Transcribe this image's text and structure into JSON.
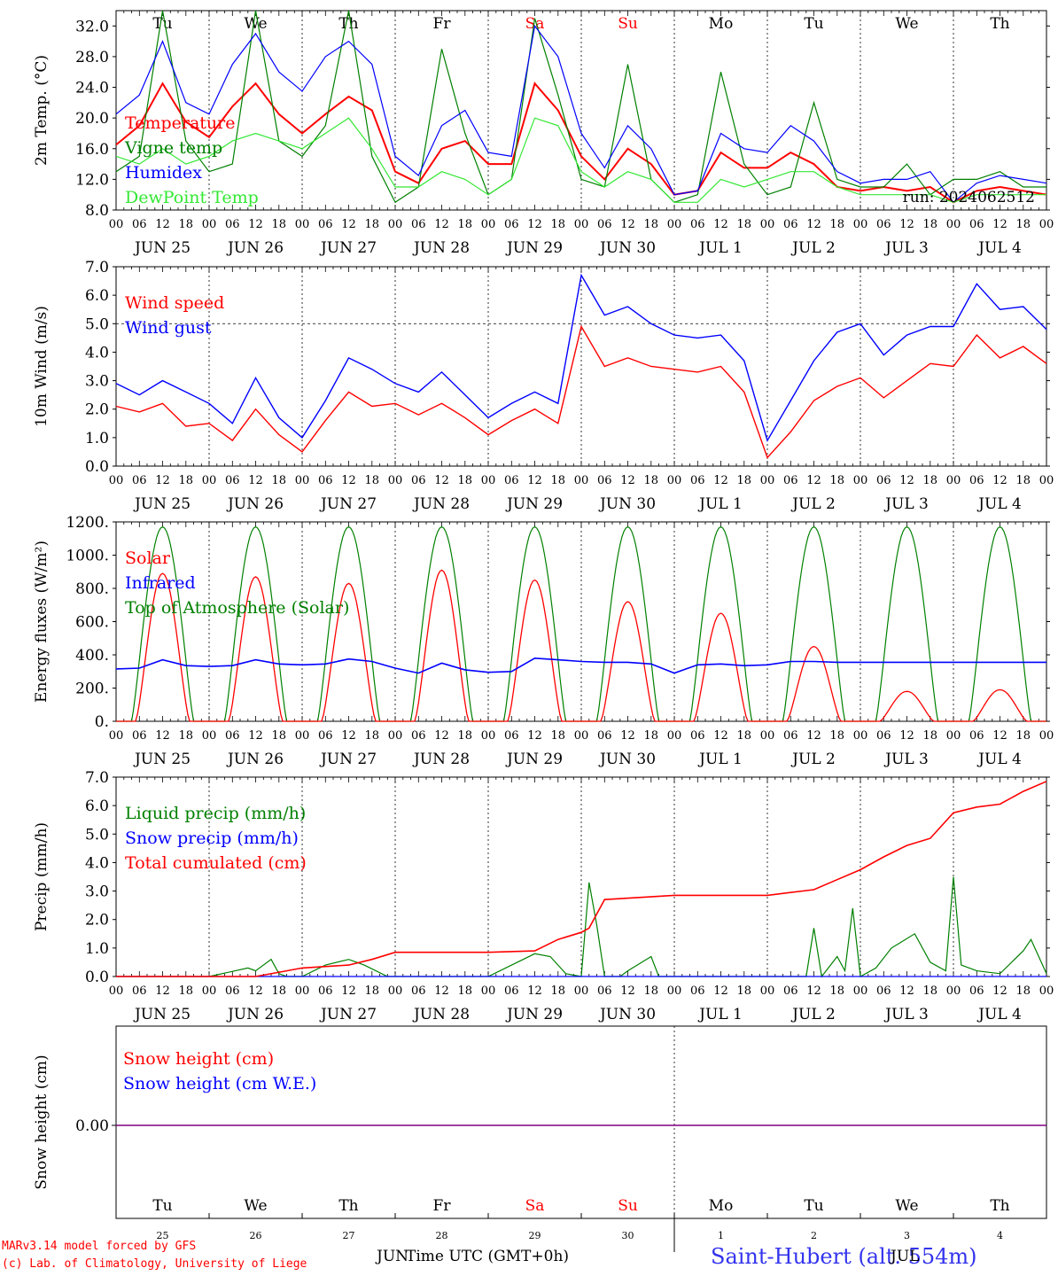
{
  "footer": {
    "model": "MARv3.14 model forced by GFS",
    "copyright": "(c) Lab. of Climatology, University of Liege",
    "station": "Saint-Hubert (alt. 554m)",
    "time_axis": "Time UTC (GMT+0h)",
    "month_jun": "JUN",
    "month_jul": "JUL"
  },
  "colors": {
    "red": "#ff0000",
    "green": "#008000",
    "blue": "#0000ff",
    "lightgreen": "#33e833",
    "purple": "#800080",
    "sat_sun": "#ff0000"
  },
  "days": [
    "Tu",
    "We",
    "Th",
    "Fr",
    "Sa",
    "Su",
    "Mo",
    "Tu",
    "We",
    "Th"
  ],
  "weekend_indices": [
    4,
    5
  ],
  "date_labels": [
    "JUN 25",
    "JUN 26",
    "JUN 27",
    "JUN 28",
    "JUN 29",
    "JUN 30",
    "JUL  1",
    "JUL  2",
    "JUL  3",
    "JUL  4"
  ],
  "day_numbers": [
    "25",
    "26",
    "27",
    "28",
    "29",
    "30",
    "1",
    "2",
    "3",
    "4"
  ],
  "hour_ticks": [
    "00",
    "06",
    "12",
    "18"
  ],
  "chart_data": [
    {
      "type": "line",
      "id": "temperature",
      "ylabel": "2m Temp. (°C)",
      "ylim": [
        8.0,
        34.0
      ],
      "yticks": [
        "8.0",
        "12.0",
        "16.0",
        "20.0",
        "24.0",
        "28.0",
        "32.0"
      ],
      "run_label": "run: 2024062512",
      "x_unit": "hours since JUN 25 00 UTC",
      "series": [
        {
          "name": "Temperature",
          "color": "red",
          "x": [
            0,
            6,
            12,
            18,
            24,
            30,
            36,
            42,
            48,
            54,
            60,
            66,
            72,
            78,
            84,
            90,
            96,
            102,
            108,
            114,
            120,
            126,
            132,
            138,
            144,
            150,
            156,
            162,
            168,
            174,
            180,
            186,
            192,
            198,
            204,
            210,
            216,
            222,
            228,
            234,
            240
          ],
          "values": [
            16.5,
            19,
            24.5,
            19.5,
            17.5,
            21.5,
            24.5,
            20.5,
            18,
            20.5,
            22.8,
            21,
            13,
            11.5,
            16,
            17,
            14,
            14,
            24.5,
            21,
            15,
            12,
            16,
            14,
            10,
            10.5,
            15.5,
            13.5,
            13.5,
            15.5,
            14,
            11,
            10.5,
            11,
            10.5,
            11,
            9,
            10.5,
            11,
            10.5,
            10
          ]
        },
        {
          "name": "Vigne temp",
          "color": "green",
          "x": [
            0,
            6,
            12,
            18,
            24,
            30,
            36,
            42,
            48,
            54,
            60,
            66,
            72,
            78,
            84,
            90,
            96,
            102,
            108,
            114,
            120,
            126,
            132,
            138,
            144,
            150,
            156,
            162,
            168,
            174,
            180,
            186,
            192,
            198,
            204,
            210,
            216,
            222,
            228,
            234,
            240
          ],
          "values": [
            13,
            15,
            34,
            17,
            13,
            14,
            34,
            17,
            15,
            19,
            34,
            15,
            9,
            11,
            29,
            18,
            10,
            12,
            33,
            23,
            12,
            11,
            27,
            12,
            9,
            10,
            26,
            14,
            10,
            11,
            22,
            12,
            11,
            11,
            14,
            10,
            12,
            12,
            13,
            11,
            11
          ]
        },
        {
          "name": "Humidex",
          "color": "blue",
          "x": [
            0,
            6,
            12,
            18,
            24,
            30,
            36,
            42,
            48,
            54,
            60,
            66,
            72,
            78,
            84,
            90,
            96,
            102,
            108,
            114,
            120,
            126,
            132,
            138,
            144,
            150,
            156,
            162,
            168,
            174,
            180,
            186,
            192,
            198,
            204,
            210,
            216,
            222,
            228,
            234,
            240
          ],
          "values": [
            20.5,
            23,
            30,
            22,
            20.5,
            27,
            31,
            26,
            23.5,
            28,
            30,
            27,
            15,
            12.5,
            19,
            21,
            15.5,
            15,
            32,
            28,
            18,
            13.5,
            19,
            16,
            10,
            10.5,
            18,
            16,
            15.5,
            19,
            17,
            13,
            11.5,
            12,
            12,
            13,
            9,
            11.5,
            12.5,
            12,
            11.5
          ]
        },
        {
          "name": "DewPoint Temp",
          "color": "lightgreen",
          "x": [
            0,
            6,
            12,
            18,
            24,
            30,
            36,
            42,
            48,
            54,
            60,
            66,
            72,
            78,
            84,
            90,
            96,
            102,
            108,
            114,
            120,
            126,
            132,
            138,
            144,
            150,
            156,
            162,
            168,
            174,
            180,
            186,
            192,
            198,
            204,
            210,
            216,
            222,
            228,
            234,
            240
          ],
          "values": [
            15,
            14,
            16,
            14,
            15,
            17,
            18,
            17,
            16,
            18,
            20,
            16,
            11,
            11,
            13,
            12,
            10,
            12,
            20,
            19,
            13,
            11,
            13,
            12,
            9,
            9,
            12,
            11,
            12,
            13,
            13,
            11,
            10,
            10,
            10,
            10,
            9,
            10,
            10,
            10,
            10
          ]
        }
      ]
    },
    {
      "type": "line",
      "id": "wind",
      "ylabel": "10m Wind (m/s)",
      "ylim": [
        0.0,
        7.0
      ],
      "yticks": [
        "0.0",
        "1.0",
        "2.0",
        "3.0",
        "4.0",
        "5.0",
        "6.0",
        "7.0"
      ],
      "reference_line": 5.0,
      "series": [
        {
          "name": "Wind speed",
          "color": "red",
          "x": [
            0,
            6,
            12,
            18,
            24,
            30,
            36,
            42,
            48,
            54,
            60,
            66,
            72,
            78,
            84,
            90,
            96,
            102,
            108,
            114,
            120,
            126,
            132,
            138,
            144,
            150,
            156,
            162,
            168,
            174,
            180,
            186,
            192,
            198,
            204,
            210,
            216,
            222,
            228,
            234,
            240
          ],
          "values": [
            2.1,
            1.9,
            2.2,
            1.4,
            1.5,
            0.9,
            2.0,
            1.1,
            0.5,
            1.6,
            2.6,
            2.1,
            2.2,
            1.8,
            2.2,
            1.7,
            1.1,
            1.6,
            2.0,
            1.5,
            4.9,
            3.5,
            3.8,
            3.5,
            3.4,
            3.3,
            3.5,
            2.6,
            0.3,
            1.2,
            2.3,
            2.8,
            3.1,
            2.4,
            3.0,
            3.6,
            3.5,
            4.6,
            3.8,
            4.2,
            3.6
          ]
        },
        {
          "name": "Wind gust",
          "color": "blue",
          "x": [
            0,
            6,
            12,
            18,
            24,
            30,
            36,
            42,
            48,
            54,
            60,
            66,
            72,
            78,
            84,
            90,
            96,
            102,
            108,
            114,
            120,
            126,
            132,
            138,
            144,
            150,
            156,
            162,
            168,
            174,
            180,
            186,
            192,
            198,
            204,
            210,
            216,
            222,
            228,
            234,
            240
          ],
          "values": [
            2.9,
            2.5,
            3.0,
            2.6,
            2.2,
            1.5,
            3.1,
            1.7,
            1.0,
            2.3,
            3.8,
            3.4,
            2.9,
            2.6,
            3.3,
            2.5,
            1.7,
            2.2,
            2.6,
            2.2,
            6.7,
            5.3,
            5.6,
            5.0,
            4.6,
            4.5,
            4.6,
            3.7,
            0.9,
            2.3,
            3.7,
            4.7,
            5.0,
            3.9,
            4.6,
            4.9,
            4.9,
            6.4,
            5.5,
            5.6,
            4.8
          ]
        }
      ]
    },
    {
      "type": "line",
      "id": "energy",
      "ylabel": "Energy fluxes (W/m²)",
      "ylim": [
        0,
        1200
      ],
      "yticks": [
        "0.",
        "200.",
        "400.",
        "600.",
        "800.",
        "1000.",
        "1200."
      ],
      "toa_peak": 1170,
      "solar_peaks": [
        890,
        870,
        830,
        910,
        850,
        720,
        650,
        450,
        180,
        190
      ],
      "series": [
        {
          "name": "Solar",
          "color": "red"
        },
        {
          "name": "Infrared",
          "color": "blue",
          "x": [
            0,
            6,
            12,
            18,
            24,
            30,
            36,
            42,
            48,
            54,
            60,
            66,
            72,
            78,
            84,
            90,
            96,
            102,
            108,
            114,
            120,
            126,
            132,
            138,
            144,
            150,
            156,
            162,
            168,
            174,
            180,
            186,
            192,
            198,
            204,
            210,
            216,
            222,
            228,
            234,
            240
          ],
          "values": [
            315,
            320,
            370,
            335,
            330,
            335,
            370,
            345,
            340,
            345,
            375,
            360,
            320,
            290,
            350,
            310,
            295,
            300,
            380,
            370,
            360,
            355,
            355,
            345,
            290,
            340,
            345,
            335,
            340,
            360,
            360,
            355,
            355,
            355,
            355,
            355,
            355,
            355,
            355,
            355,
            355
          ]
        },
        {
          "name": "Top of Atmosphere (Solar)",
          "color": "green"
        }
      ]
    },
    {
      "type": "line",
      "id": "precip",
      "ylabel": "Precip (mm/h)",
      "ylim": [
        0.0,
        7.0
      ],
      "yticks": [
        "0.0",
        "1.0",
        "2.0",
        "3.0",
        "4.0",
        "5.0",
        "6.0",
        "7.0"
      ],
      "series": [
        {
          "name": "Liquid precip (mm/h)",
          "color": "green",
          "x": [
            0,
            24,
            34,
            36,
            40,
            42,
            44,
            48,
            54,
            60,
            64,
            70,
            72,
            96,
            108,
            112,
            116,
            120,
            122,
            124,
            126,
            130,
            132,
            138,
            140,
            144,
            168,
            178,
            180,
            182,
            186,
            188,
            190,
            192,
            196,
            200,
            206,
            210,
            214,
            216,
            218,
            222,
            228,
            234,
            236,
            240
          ],
          "values": [
            0,
            0,
            0.3,
            0.2,
            0.6,
            0.1,
            0,
            0,
            0.4,
            0.6,
            0.4,
            0,
            0,
            0,
            0.8,
            0.7,
            0.1,
            0,
            3.3,
            1.8,
            0,
            0,
            0.2,
            0.7,
            0,
            0,
            0,
            0,
            1.7,
            0,
            0.7,
            0.2,
            2.4,
            0,
            0.3,
            1.0,
            1.5,
            0.5,
            0.2,
            3.5,
            0.4,
            0.2,
            0.1,
            0.9,
            1.3,
            0.1
          ]
        },
        {
          "name": "Snow precip (mm/h)",
          "color": "blue",
          "x": [
            0,
            240
          ],
          "values": [
            0,
            0
          ]
        },
        {
          "name": "Total cumulated (cm)",
          "color": "red",
          "x": [
            0,
            36,
            44,
            48,
            60,
            66,
            72,
            96,
            108,
            114,
            120,
            122,
            126,
            144,
            168,
            180,
            186,
            192,
            198,
            204,
            210,
            216,
            222,
            228,
            234,
            240
          ],
          "values": [
            0,
            0,
            0.2,
            0.3,
            0.4,
            0.6,
            0.85,
            0.85,
            0.9,
            1.3,
            1.55,
            1.7,
            2.7,
            2.85,
            2.85,
            3.05,
            3.4,
            3.75,
            4.2,
            4.6,
            4.85,
            5.75,
            5.95,
            6.05,
            6.5,
            6.85
          ]
        }
      ]
    },
    {
      "type": "line",
      "id": "snow",
      "ylabel": "Snow height (cm)",
      "ytick": "0.00",
      "series": [
        {
          "name": "Snow height (cm)",
          "color": "red",
          "x": [
            0,
            240
          ],
          "values": [
            0,
            0
          ]
        },
        {
          "name": "Snow height (cm W.E.)",
          "color": "blue",
          "x": [
            0,
            240
          ],
          "values": [
            0,
            0
          ]
        }
      ]
    }
  ]
}
